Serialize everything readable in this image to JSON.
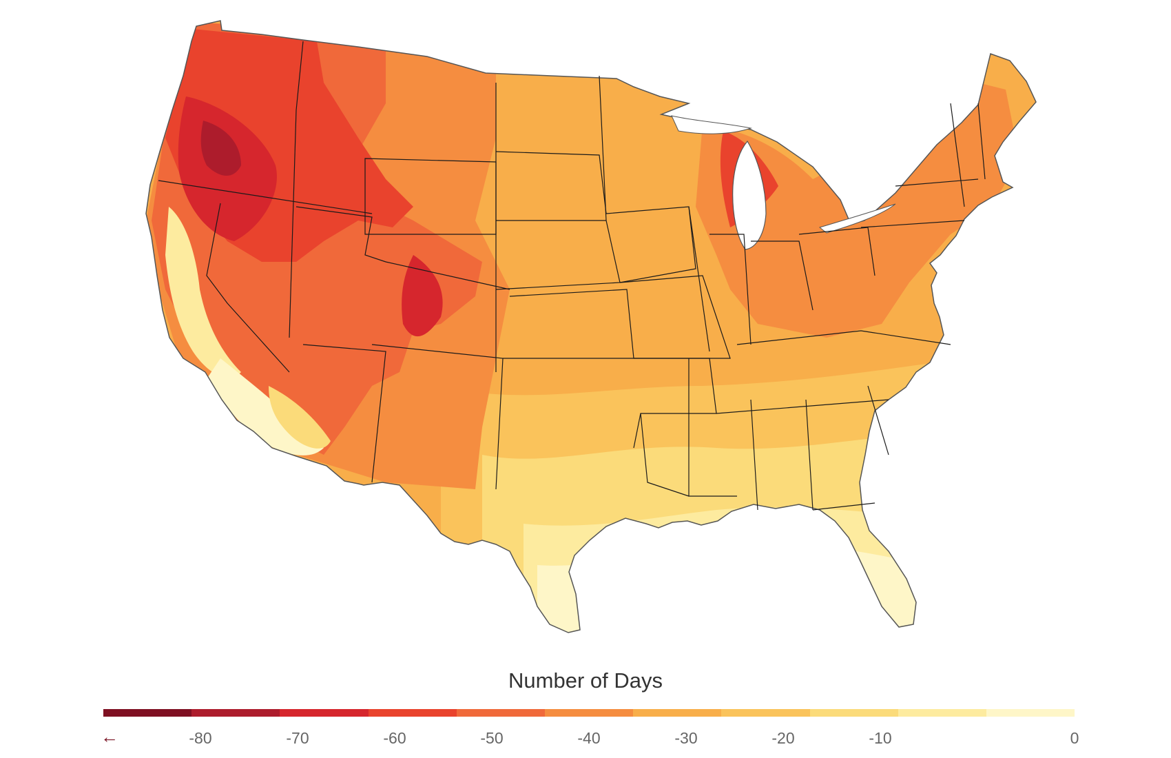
{
  "legend": {
    "title": "Number of Days",
    "arrow_icon": "left-arrow-icon",
    "ticks": [
      "-80",
      "-70",
      "-60",
      "-50",
      "-40",
      "-30",
      "-20",
      "-10",
      "0"
    ],
    "colors": [
      "#7f1022",
      "#ad1c2c",
      "#d6262d",
      "#e9432d",
      "#f0693a",
      "#f58d40",
      "#f8ae4a",
      "#fac35b",
      "#fbdb7a",
      "#fdeb9f",
      "#fef6c8"
    ]
  },
  "map_colors": {
    "water": "#ffffff",
    "border": "#1a1a1a",
    "outline": "#555555"
  }
}
